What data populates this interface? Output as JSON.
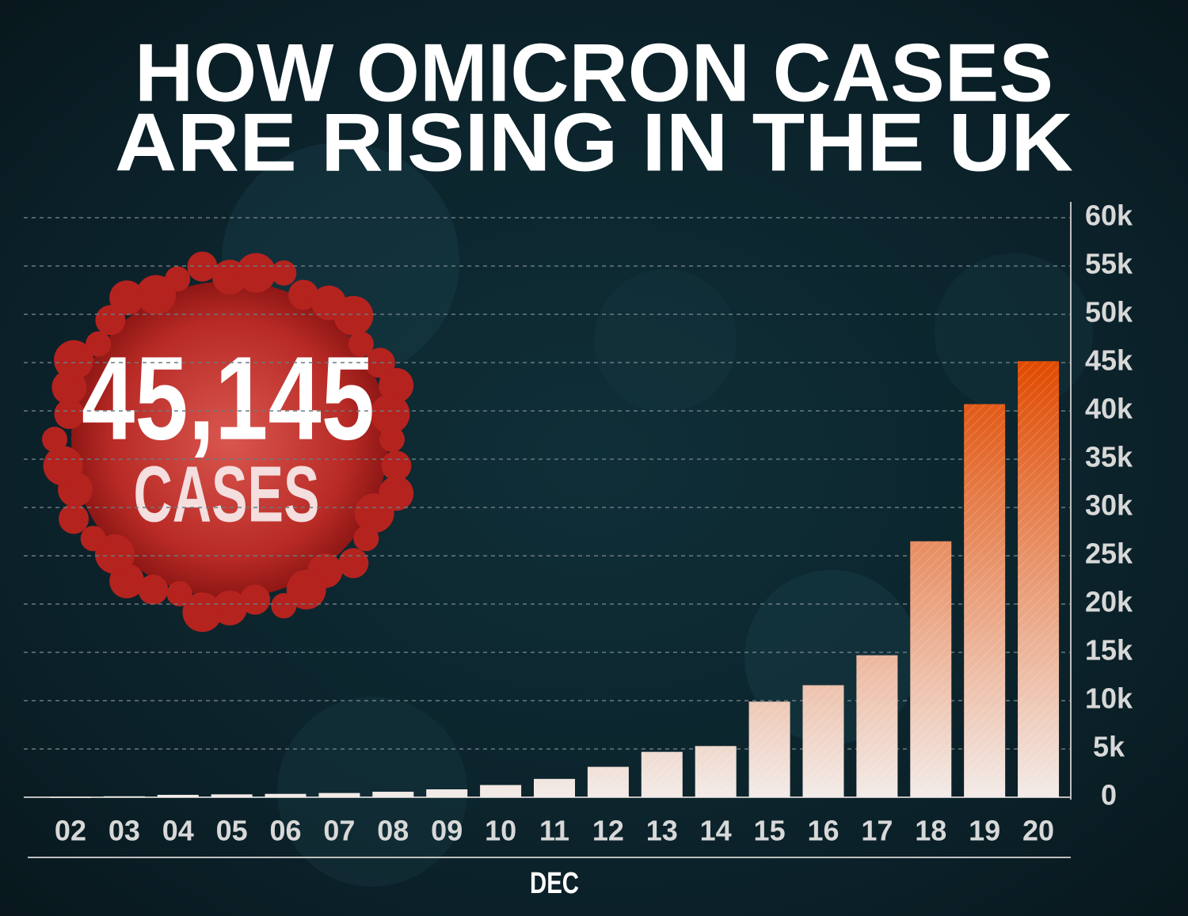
{
  "chart_data": {
    "type": "bar",
    "title": [
      "HOW OMICRON CASES",
      "ARE RISING IN THE UK"
    ],
    "annotations": [
      "45,145",
      "CASES"
    ],
    "x_label": "DEC",
    "categories": [
      "02",
      "03",
      "04",
      "05",
      "06",
      "07",
      "08",
      "09",
      "10",
      "11",
      "12",
      "13",
      "14",
      "15",
      "16",
      "17",
      "18",
      "19",
      "20"
    ],
    "values": [
      30,
      100,
      250,
      300,
      350,
      440,
      570,
      820,
      1265,
      1900,
      3150,
      4700,
      5300,
      9900,
      11600,
      14700,
      26500,
      40700,
      45145
    ],
    "colors": [
      "#f2ebe8",
      "#e04a00"
    ],
    "ylim": [
      0,
      60000
    ],
    "yticks": [
      0,
      {
        "value": 5000,
        "label": "5k"
      },
      {
        "value": 10000,
        "label": "10k"
      },
      {
        "value": 15000,
        "label": "15k"
      },
      {
        "value": 20000,
        "label": "20k"
      },
      {
        "value": 25000,
        "label": "25k"
      },
      {
        "value": 30000,
        "label": "30k"
      },
      {
        "value": 35000,
        "label": "35k"
      },
      {
        "value": 40000,
        "label": "40k"
      },
      {
        "value": 45000,
        "label": "45k"
      },
      {
        "value": 50000,
        "label": "50k"
      },
      {
        "value": 55000,
        "label": "55k"
      },
      {
        "value": 60000,
        "label": "60k"
      }
    ],
    "grid": true
  }
}
